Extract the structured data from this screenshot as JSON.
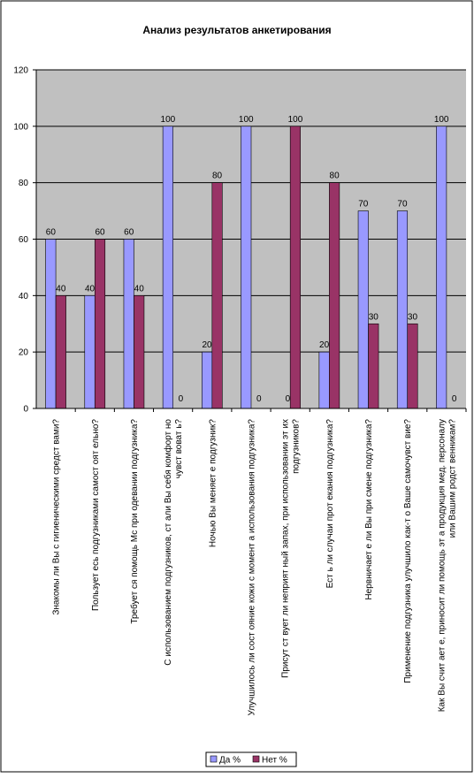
{
  "chart_data": {
    "type": "bar",
    "title": "Анализ результатов анкетирования",
    "categories": [
      "Знакомы ли Вы с гигиеническими средст вами?",
      "Пользует есь подгузниками самост оят ельно?",
      "Требует ся помощь Мс при одевании подгузника?",
      "С использованием подгузников, ст али Вы себя комфорт но\nчувст воват ь?",
      "Ночью Вы меняет е подгузник?",
      "Улучшилось ли сост ояние кожи с момент а использования подгузника?",
      "Присут ст вует  ли неприят ный запах, при использовании эт их\nподгузников?",
      "Ест ь ли случаи прот екания подгузника?",
      "Нервничает е ли Вы при смене подгузника?",
      "Применение подгузника улучшило как-т о Ваше самочувст вие?",
      "Как Вы счит ает е, приносит  ли помощь эт а продукция мед. персоналу\nили Вашим родст венникам?"
    ],
    "series": [
      {
        "name": "Да %",
        "color": "#9999ff",
        "values": [
          60,
          40,
          60,
          100,
          20,
          100,
          0,
          20,
          70,
          70,
          100
        ]
      },
      {
        "name": "Нет  %",
        "color": "#993366",
        "values": [
          40,
          60,
          40,
          0,
          80,
          0,
          100,
          80,
          30,
          30,
          0
        ]
      }
    ],
    "ylim": [
      0,
      120
    ],
    "yticks": [
      0,
      20,
      40,
      60,
      80,
      100,
      120
    ],
    "grid": true,
    "legend": "bottom"
  }
}
